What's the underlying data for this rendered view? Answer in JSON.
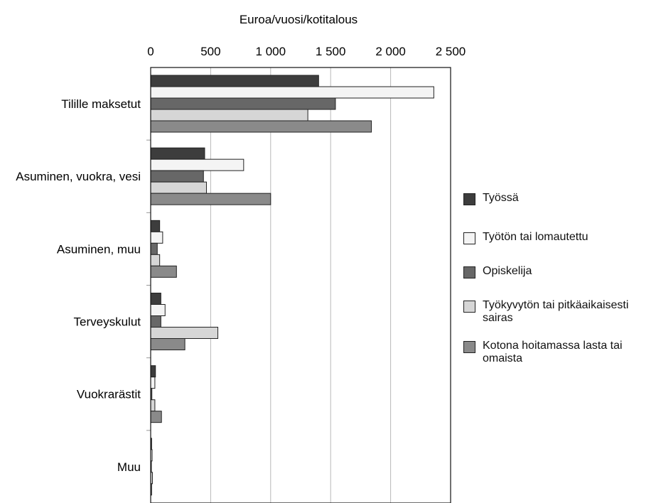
{
  "chart_data": {
    "type": "bar",
    "orientation": "horizontal",
    "title": "Euroa/vuosi/kotitalous",
    "xlim": [
      0,
      2500
    ],
    "x_ticks": [
      0,
      500,
      1000,
      1500,
      2000,
      2500
    ],
    "x_tick_labels": [
      "0",
      "500",
      "1 000",
      "1 500",
      "2 000",
      "2 500"
    ],
    "x_axis_position": "top",
    "grid": true,
    "legend_position": "right",
    "categories": [
      "Tilille maksetut",
      "Asuminen, vuokra, vesi",
      "Asuminen, muu",
      "Terveyskulut",
      "Vuokrarästit",
      "Muu"
    ],
    "series": [
      {
        "name": "Työssä",
        "color": "#3d3d3d",
        "values": [
          1400,
          450,
          75,
          85,
          40,
          8
        ]
      },
      {
        "name": "Työtön tai lomautettu",
        "color": "#f4f4f4",
        "values": [
          2360,
          775,
          100,
          120,
          35,
          12
        ]
      },
      {
        "name": "Opiskelija",
        "color": "#676767",
        "values": [
          1540,
          440,
          55,
          85,
          10,
          5
        ]
      },
      {
        "name": "Työkyvytön tai pitkäaikaisesti sairas",
        "color": "#d6d6d6",
        "values": [
          1310,
          465,
          75,
          560,
          35,
          15
        ]
      },
      {
        "name": "Kotona hoitamassa lasta tai omaista",
        "color": "#8a8a8a",
        "values": [
          1840,
          1000,
          215,
          285,
          90,
          8
        ]
      }
    ]
  }
}
